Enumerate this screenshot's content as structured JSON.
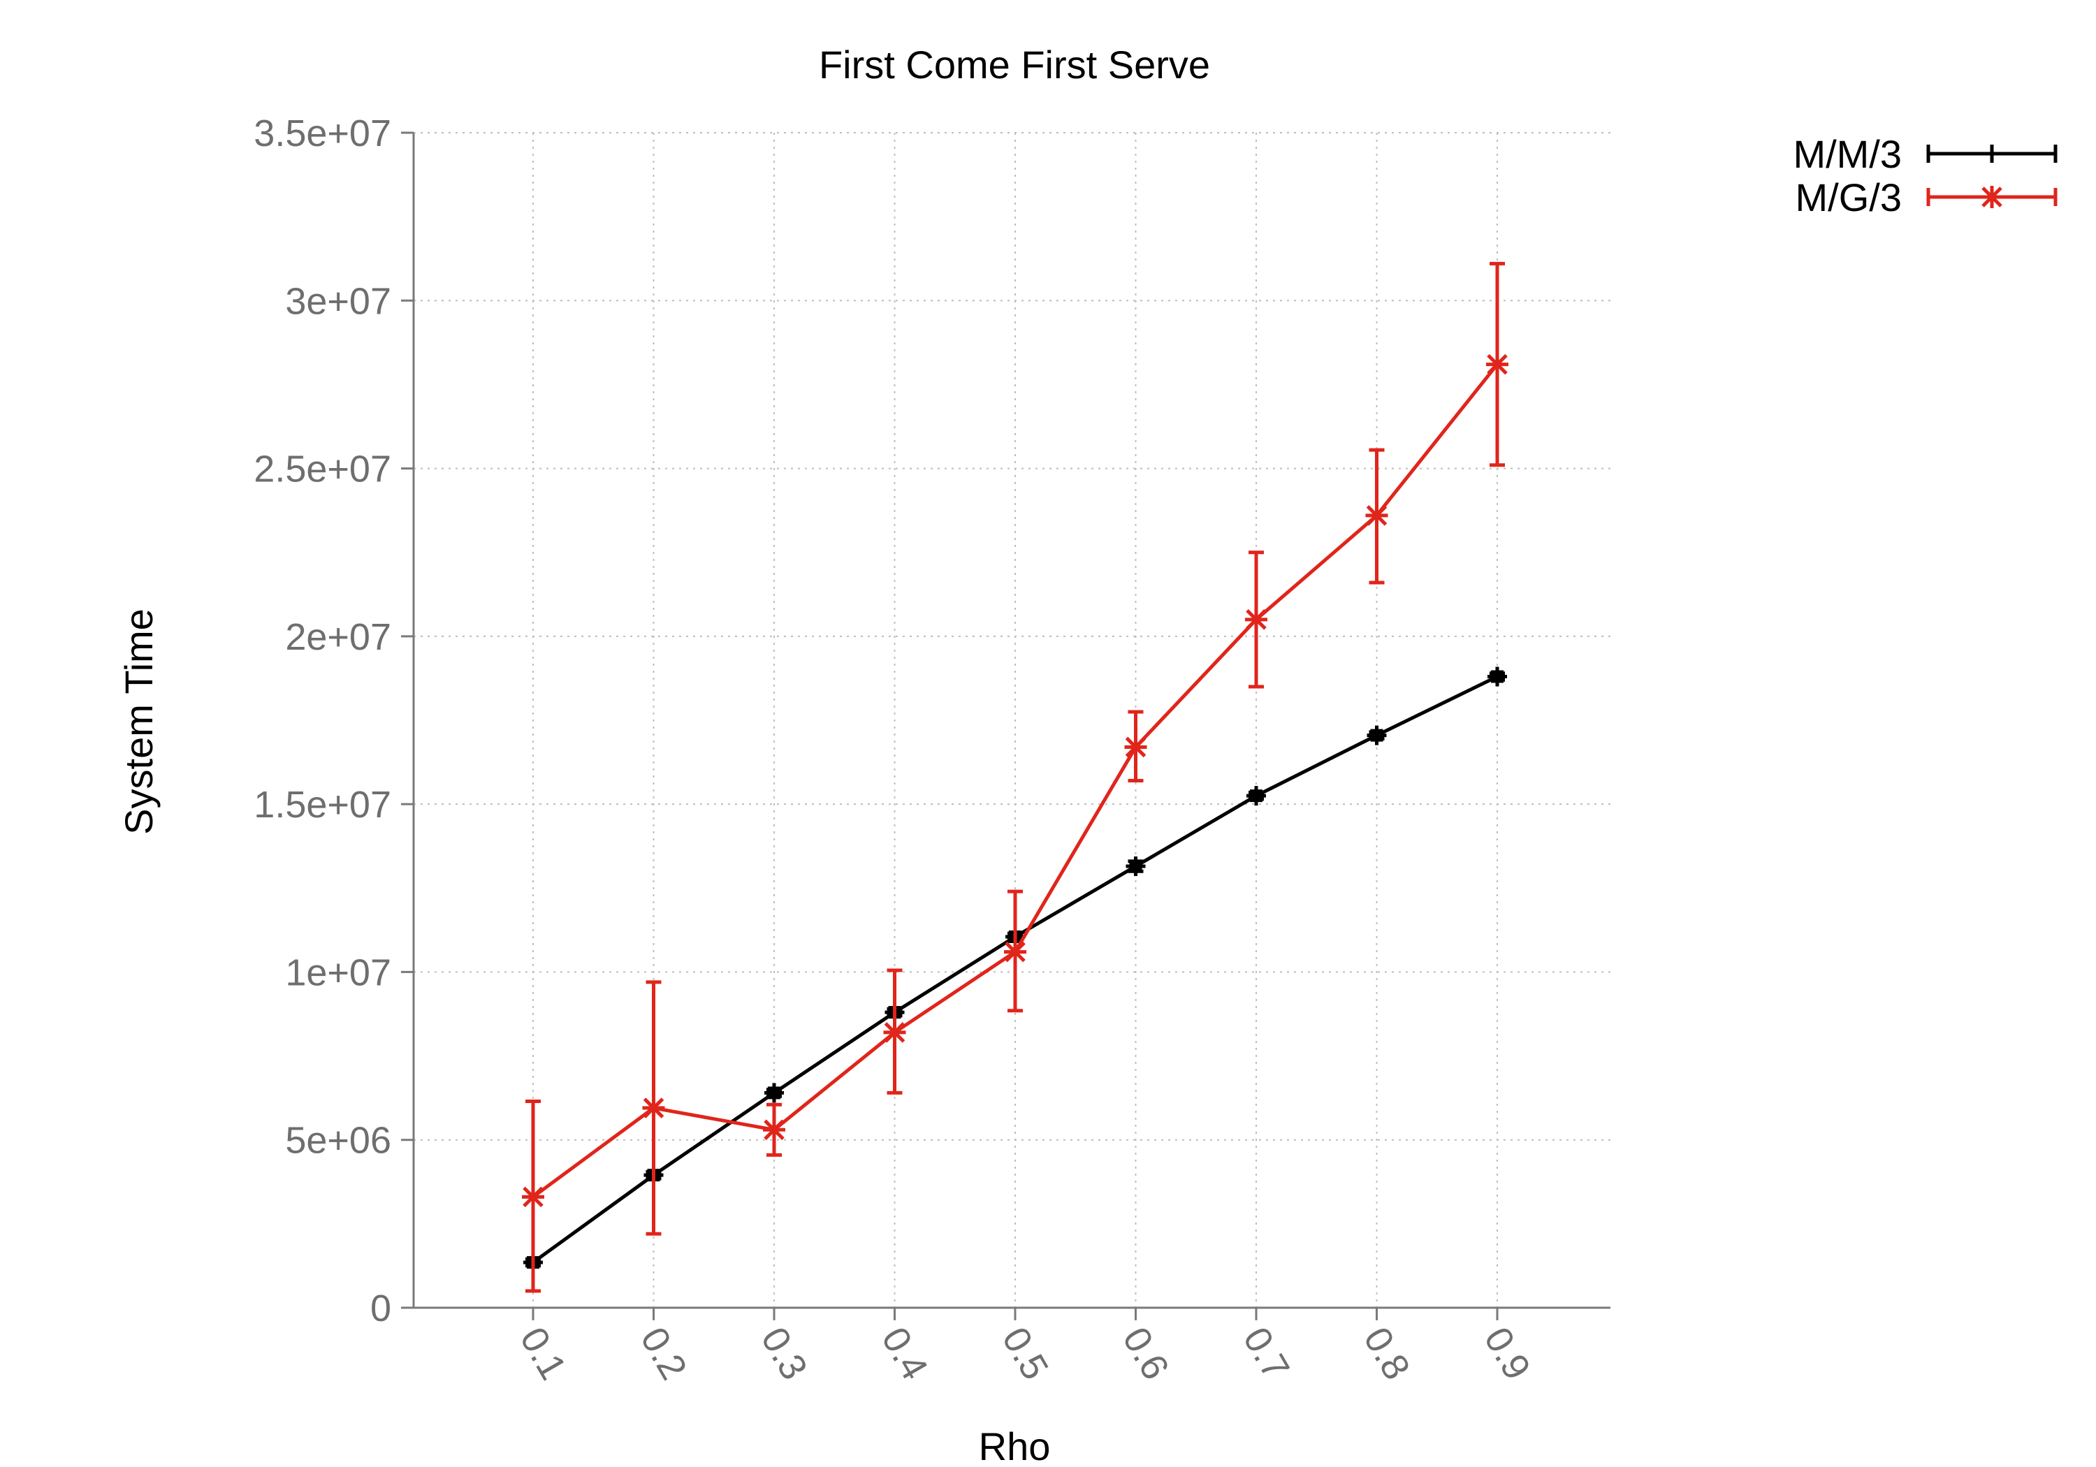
{
  "chart_data": {
    "type": "line",
    "title": "First Come First Serve",
    "xlabel": "Rho",
    "ylabel": "System Time",
    "categories": [
      "0.1",
      "0.2",
      "0.3",
      "0.4",
      "0.5",
      "0.6",
      "0.7",
      "0.8",
      "0.9"
    ],
    "yticks": [
      "0",
      "5e+06",
      "1e+07",
      "1.5e+07",
      "2e+07",
      "2.5e+07",
      "3e+07",
      "3.5e+07"
    ],
    "ylim": [
      0,
      35000000
    ],
    "grid": true,
    "legend_position": "top-right, outside plot",
    "series": [
      {
        "name": "M/M/3",
        "color": "#000000",
        "marker": "plus",
        "values": [
          1350000,
          3950000,
          6400000,
          8800000,
          11050000,
          13150000,
          15250000,
          17050000,
          18800000
        ],
        "err_low": [
          1250000,
          3850000,
          6300000,
          8700000,
          10950000,
          13000000,
          15150000,
          16950000,
          18700000
        ],
        "err_high": [
          1450000,
          4050000,
          6500000,
          8900000,
          11150000,
          13300000,
          15350000,
          17150000,
          18900000
        ]
      },
      {
        "name": "M/G/3",
        "color": "#e0251b",
        "marker": "star",
        "values": [
          3300000,
          5950000,
          5300000,
          8200000,
          10600000,
          16700000,
          20500000,
          23600000,
          28100000
        ],
        "err_low": [
          500000,
          2200000,
          4550000,
          6400000,
          8850000,
          15700000,
          18500000,
          21600000,
          25100000
        ],
        "err_high": [
          6150000,
          9700000,
          6050000,
          10050000,
          12400000,
          17750000,
          22500000,
          25550000,
          31100000
        ]
      }
    ]
  }
}
